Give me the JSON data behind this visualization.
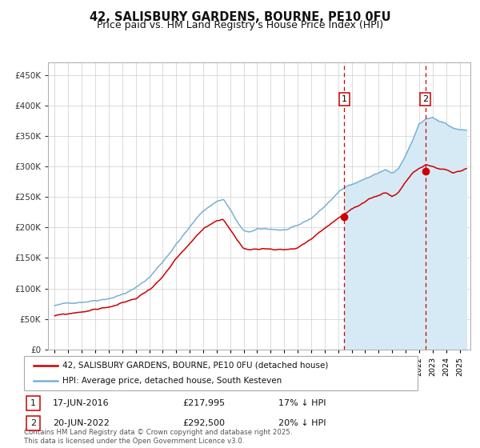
{
  "title": "42, SALISBURY GARDENS, BOURNE, PE10 0FU",
  "subtitle": "Price paid vs. HM Land Registry's House Price Index (HPI)",
  "legend_line1": "42, SALISBURY GARDENS, BOURNE, PE10 0FU (detached house)",
  "legend_line2": "HPI: Average price, detached house, South Kesteven",
  "annotation1_label": "1",
  "annotation1_date": "17-JUN-2016",
  "annotation1_price": "£217,995",
  "annotation1_hpi": "17% ↓ HPI",
  "annotation2_label": "2",
  "annotation2_date": "20-JUN-2022",
  "annotation2_price": "£292,500",
  "annotation2_hpi": "20% ↓ HPI",
  "purchase1_year": 2016.46,
  "purchase1_value": 217995,
  "purchase2_year": 2022.46,
  "purchase2_value": 292500,
  "hpi_color": "#7ab0d4",
  "hpi_fill_color": "#d6eaf5",
  "price_color": "#cc0000",
  "vline_color": "#cc0000",
  "grid_color": "#cccccc",
  "background_color": "#ffffff",
  "title_fontsize": 10.5,
  "subtitle_fontsize": 9,
  "ylim": [
    0,
    470000
  ],
  "yticks": [
    0,
    50000,
    100000,
    150000,
    200000,
    250000,
    300000,
    350000,
    400000,
    450000
  ],
  "footer": "Contains HM Land Registry data © Crown copyright and database right 2025.\nThis data is licensed under the Open Government Licence v3.0."
}
